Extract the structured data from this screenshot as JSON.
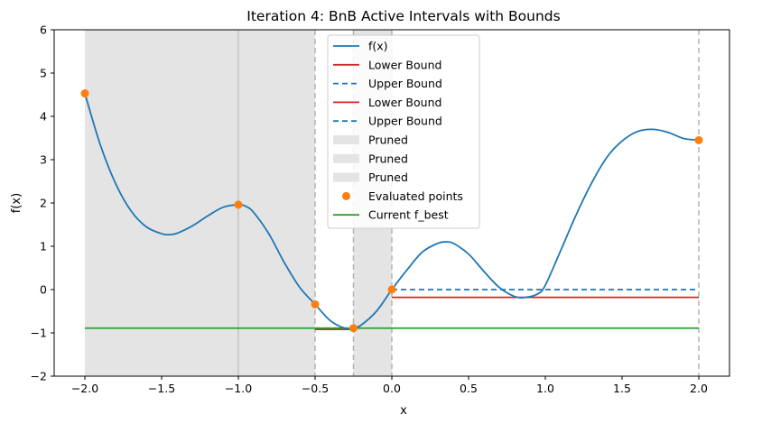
{
  "chart_data": {
    "type": "line",
    "title": "Iteration 4: BnB Active Intervals with Bounds",
    "xlabel": "x",
    "ylabel": "f(x)",
    "xlim": [
      -2.2,
      2.2
    ],
    "ylim": [
      -2,
      6
    ],
    "xticks": [
      -2.0,
      -1.5,
      -1.0,
      -0.5,
      0.0,
      0.5,
      1.0,
      1.5,
      2.0
    ],
    "xtick_labels": [
      "−2.0",
      "−1.5",
      "−1.0",
      "−0.5",
      "0.0",
      "0.5",
      "1.0",
      "1.5",
      "2.0"
    ],
    "yticks": [
      -2,
      -1,
      0,
      1,
      2,
      3,
      4,
      5,
      6
    ],
    "ytick_labels": [
      "−2",
      "−1",
      "0",
      "1",
      "2",
      "3",
      "4",
      "5",
      "6"
    ],
    "grid": false,
    "legend_position": "upper center",
    "curve": {
      "name": "f(x)",
      "color": "#1f77b4",
      "points": [
        [
          -2.0,
          4.53
        ],
        [
          -1.9,
          3.35
        ],
        [
          -1.8,
          2.45
        ],
        [
          -1.7,
          1.82
        ],
        [
          -1.6,
          1.45
        ],
        [
          -1.5,
          1.29
        ],
        [
          -1.45,
          1.27
        ],
        [
          -1.4,
          1.3
        ],
        [
          -1.3,
          1.47
        ],
        [
          -1.2,
          1.7
        ],
        [
          -1.1,
          1.9
        ],
        [
          -1.0,
          1.96
        ],
        [
          -0.95,
          1.92
        ],
        [
          -0.9,
          1.78
        ],
        [
          -0.8,
          1.28
        ],
        [
          -0.7,
          0.62
        ],
        [
          -0.6,
          0.05
        ],
        [
          -0.5,
          -0.34
        ],
        [
          -0.4,
          -0.72
        ],
        [
          -0.3,
          -0.9
        ],
        [
          -0.25,
          -0.89
        ],
        [
          -0.2,
          -0.82
        ],
        [
          -0.1,
          -0.5
        ],
        [
          0.0,
          0.0
        ],
        [
          0.1,
          0.46
        ],
        [
          0.2,
          0.87
        ],
        [
          0.3,
          1.07
        ],
        [
          0.35,
          1.1
        ],
        [
          0.4,
          1.07
        ],
        [
          0.5,
          0.82
        ],
        [
          0.6,
          0.42
        ],
        [
          0.7,
          0.05
        ],
        [
          0.8,
          -0.16
        ],
        [
          0.87,
          -0.18
        ],
        [
          0.95,
          -0.1
        ],
        [
          1.0,
          0.1
        ],
        [
          1.1,
          0.9
        ],
        [
          1.2,
          1.72
        ],
        [
          1.3,
          2.45
        ],
        [
          1.4,
          3.05
        ],
        [
          1.5,
          3.43
        ],
        [
          1.6,
          3.65
        ],
        [
          1.7,
          3.7
        ],
        [
          1.8,
          3.63
        ],
        [
          1.9,
          3.49
        ],
        [
          2.0,
          3.45
        ]
      ]
    },
    "pruned_regions": [
      {
        "name": "Pruned",
        "x": [
          -2.0,
          -0.5
        ],
        "color": "#e4e4e4"
      },
      {
        "name": "Pruned",
        "x": [
          -0.25,
          0.0
        ],
        "color": "#e4e4e4"
      }
    ],
    "solid_vlines": [
      -1.0
    ],
    "dashed_vlines": [
      -0.5,
      -0.25,
      0.0,
      2.0
    ],
    "bound_segments": [
      {
        "name": "Lower Bound",
        "x": [
          -0.5,
          -0.25
        ],
        "y": -0.92,
        "color": "#d62728",
        "dash": false
      },
      {
        "name": "Upper Bound",
        "x": [
          -0.5,
          -0.25
        ],
        "y": -0.89,
        "color": "#1f77b4",
        "dash": true
      },
      {
        "name": "Lower Bound",
        "x": [
          0.0,
          2.0
        ],
        "y": -0.18,
        "color": "#d62728",
        "dash": false
      },
      {
        "name": "Upper Bound",
        "x": [
          0.0,
          2.0
        ],
        "y": 0.0,
        "color": "#1f77b4",
        "dash": true
      }
    ],
    "evaluated_points": {
      "name": "Evaluated points",
      "color": "#ff7f0e",
      "points": [
        [
          -2.0,
          4.53
        ],
        [
          -1.0,
          1.96
        ],
        [
          -0.5,
          -0.34
        ],
        [
          -0.25,
          -0.89
        ],
        [
          0.0,
          0.0
        ],
        [
          2.0,
          3.45
        ]
      ]
    },
    "f_best": {
      "name": "Current f_best",
      "y": -0.89,
      "x": [
        -2.0,
        2.0
      ],
      "color": "#2ca02c"
    },
    "legend": [
      {
        "label": "f(x)",
        "kind": "line",
        "color": "#1f77b4"
      },
      {
        "label": "Lower Bound",
        "kind": "line",
        "color": "#d62728"
      },
      {
        "label": "Upper Bound",
        "kind": "dashed",
        "color": "#1f77b4"
      },
      {
        "label": "Lower Bound",
        "kind": "line",
        "color": "#d62728"
      },
      {
        "label": "Upper Bound",
        "kind": "dashed",
        "color": "#1f77b4"
      },
      {
        "label": "Pruned",
        "kind": "patch",
        "color": "#e4e4e4"
      },
      {
        "label": "Pruned",
        "kind": "patch",
        "color": "#e4e4e4"
      },
      {
        "label": "Pruned",
        "kind": "patch",
        "color": "#e4e4e4"
      },
      {
        "label": "Evaluated points",
        "kind": "marker",
        "color": "#ff7f0e"
      },
      {
        "label": "Current f_best",
        "kind": "line",
        "color": "#2ca02c"
      }
    ]
  }
}
